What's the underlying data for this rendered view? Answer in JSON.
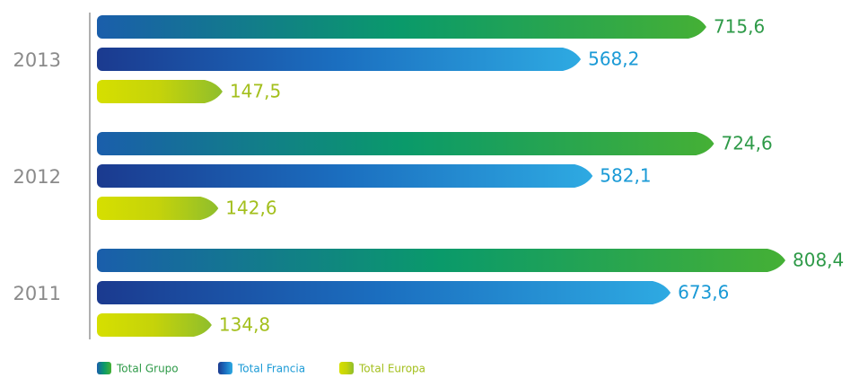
{
  "chart_data": {
    "type": "bar",
    "orientation": "horizontal",
    "categories": [
      "2013",
      "2012",
      "2011"
    ],
    "series": [
      {
        "name": "Total Grupo",
        "color": [
          "#1a5eab",
          "#0a9a6a",
          "#45b035"
        ],
        "values": [
          715.6,
          724.6,
          808.4
        ],
        "value_labels": [
          "715,6",
          "724,6",
          "808,4"
        ]
      },
      {
        "name": "Total Francia",
        "color": [
          "#1b3a8f",
          "#1b6fc0",
          "#2eaae2"
        ],
        "values": [
          568.2,
          582.1,
          673.6
        ],
        "value_labels": [
          "568,2",
          "582,1",
          "673,6"
        ]
      },
      {
        "name": "Total Europa",
        "color": [
          "#d6df00",
          "#c5d30a",
          "#8fbe2c"
        ],
        "values": [
          147.5,
          142.6,
          134.8
        ],
        "value_labels": [
          "147,5",
          "142,6",
          "134,8"
        ]
      }
    ]
  }
}
